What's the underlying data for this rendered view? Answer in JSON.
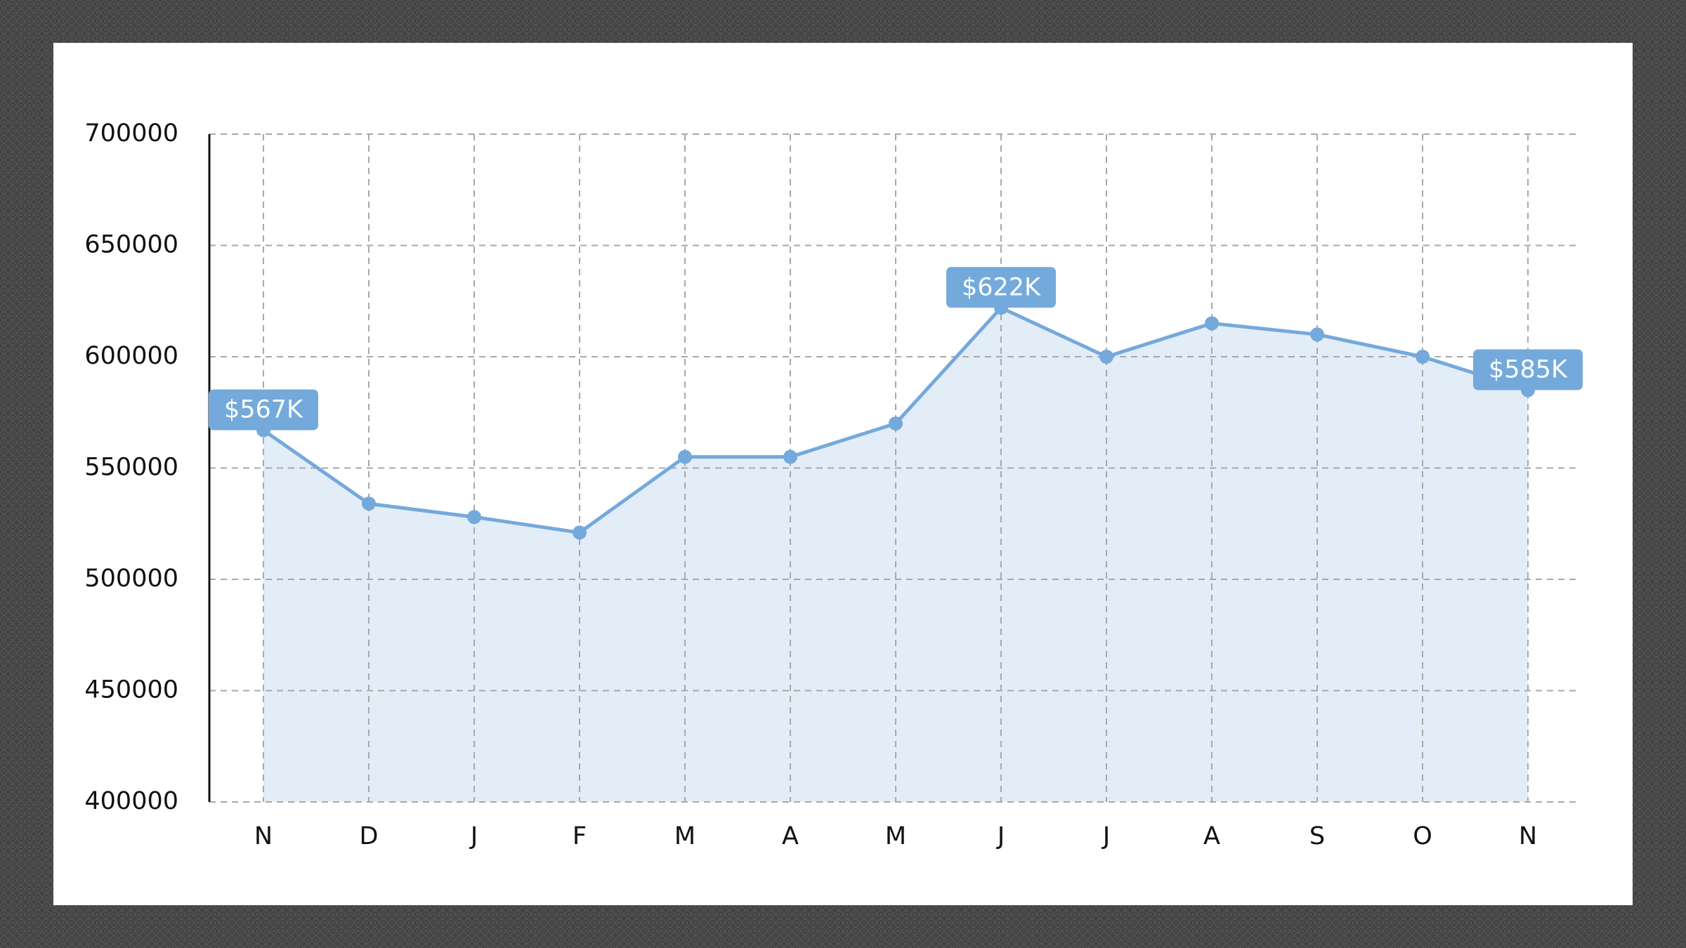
{
  "chart_data": {
    "type": "area",
    "categories": [
      "N",
      "D",
      "J",
      "F",
      "M",
      "A",
      "M",
      "J",
      "J",
      "A",
      "S",
      "O",
      "N"
    ],
    "values": [
      567000,
      534000,
      528000,
      521000,
      555000,
      555000,
      570000,
      622000,
      600000,
      615000,
      610000,
      600000,
      585000
    ],
    "value_labels": [
      "$567K",
      null,
      null,
      null,
      null,
      null,
      null,
      "$622K",
      null,
      null,
      null,
      null,
      "$585K"
    ],
    "color": "#74a9dc",
    "area_color": "#e3edf8",
    "ylim": [
      400000,
      700000
    ],
    "yticks": [
      400000,
      450000,
      500000,
      550000,
      600000,
      650000,
      700000
    ],
    "grid": true
  }
}
